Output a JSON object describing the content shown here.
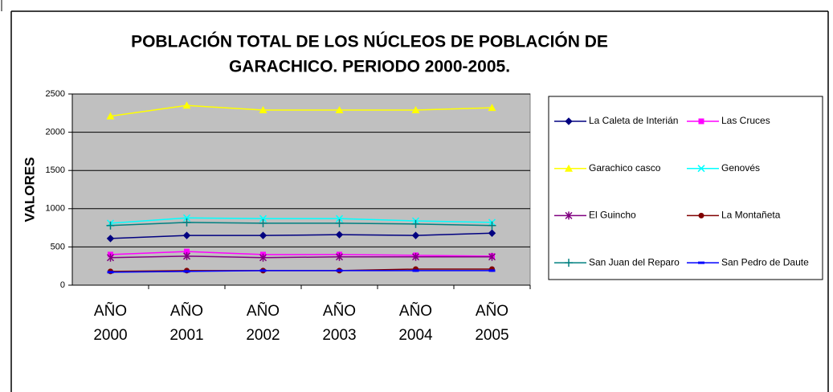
{
  "chart_data": {
    "type": "line",
    "title": [
      "POBLACIÓN TOTAL DE LOS NÚCLEOS DE POBLACIÓN DE",
      "GARACHICO. PERIODO 2000-2005."
    ],
    "y_label": "VALORES",
    "categories": [
      "AÑO 2000",
      "AÑO 2001",
      "AÑO 2002",
      "AÑO 2003",
      "AÑO 2004",
      "AÑO 2005"
    ],
    "ylim": [
      0,
      2500
    ],
    "yticks": [
      0,
      500,
      1000,
      1500,
      2000,
      2500
    ],
    "grid": true,
    "legend": "right",
    "series": [
      {
        "name": "La Caleta de Interián",
        "color": "#000080",
        "marker": "diamond",
        "values": [
          610,
          650,
          650,
          660,
          650,
          680
        ]
      },
      {
        "name": "Las Cruces",
        "color": "#ff00ff",
        "marker": "square",
        "values": [
          400,
          440,
          400,
          400,
          390,
          380
        ]
      },
      {
        "name": "Garachico casco",
        "color": "#ffff00",
        "marker": "triangle",
        "values": [
          2210,
          2350,
          2290,
          2290,
          2290,
          2320
        ]
      },
      {
        "name": "Genovés",
        "color": "#00ffff",
        "marker": "x",
        "values": [
          810,
          880,
          870,
          870,
          840,
          820
        ]
      },
      {
        "name": "El Guincho",
        "color": "#800080",
        "marker": "star",
        "values": [
          360,
          380,
          360,
          370,
          370,
          370
        ]
      },
      {
        "name": "La Montañeta",
        "color": "#800000",
        "marker": "circle",
        "values": [
          180,
          190,
          190,
          190,
          210,
          210
        ]
      },
      {
        "name": "San Juan del Reparo",
        "color": "#008080",
        "marker": "plus",
        "values": [
          780,
          820,
          810,
          810,
          800,
          780
        ]
      },
      {
        "name": "San Pedro de Daute",
        "color": "#0000ff",
        "marker": "dash",
        "values": [
          170,
          180,
          190,
          190,
          190,
          190
        ]
      }
    ]
  }
}
